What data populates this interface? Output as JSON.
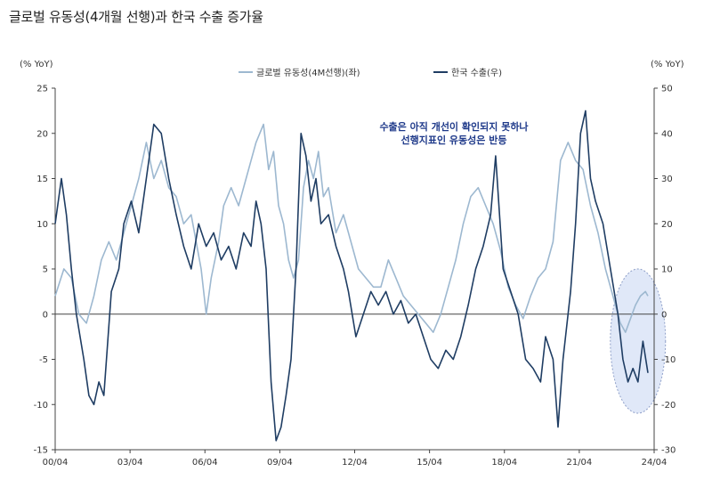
{
  "chart_data": {
    "type": "line",
    "title": "글로벌 유동성(4개월 선행)과 한국 수출 증가율",
    "left_axis": {
      "label": "(% YoY)",
      "ylim": [
        -15,
        25
      ],
      "ticks": [
        "25",
        "20",
        "15",
        "10",
        "5",
        "0",
        "-5",
        "-10",
        "-15"
      ]
    },
    "right_axis": {
      "label": "(% YoY)",
      "ylim": [
        -30,
        50
      ],
      "ticks": [
        "50",
        "40",
        "30",
        "20",
        "10",
        "0",
        "-10",
        "-20",
        "-30"
      ]
    },
    "x_ticks": [
      "00/04",
      "03/04",
      "06/04",
      "09/04",
      "12/04",
      "15/04",
      "18/04",
      "21/04",
      "24/04"
    ],
    "x_range": [
      2000.25,
      2024.25
    ],
    "legend_position": "top-center",
    "annotation": [
      "수출은 아직 개선이 확인되지 못하나",
      "선행지표인 유동성은 반등"
    ],
    "highlight": "ellipse around 2023 area",
    "colors": {
      "global": "#9db8d0",
      "korea": "#1f3d63",
      "highlight_fill": "#dbe4f7",
      "highlight_stroke": "#7b8fbf"
    },
    "series": [
      {
        "name": "글로벌 유동성(4M선행)(좌)",
        "axis": "left",
        "points": [
          [
            2000.25,
            2
          ],
          [
            2000.6,
            5
          ],
          [
            2000.9,
            4
          ],
          [
            2001.2,
            0
          ],
          [
            2001.5,
            -1
          ],
          [
            2001.8,
            2
          ],
          [
            2002.1,
            6
          ],
          [
            2002.4,
            8
          ],
          [
            2002.7,
            6
          ],
          [
            2003.0,
            9
          ],
          [
            2003.3,
            12
          ],
          [
            2003.6,
            15
          ],
          [
            2003.9,
            19
          ],
          [
            2004.2,
            15
          ],
          [
            2004.5,
            17
          ],
          [
            2004.8,
            14
          ],
          [
            2005.1,
            13
          ],
          [
            2005.4,
            10
          ],
          [
            2005.7,
            11
          ],
          [
            2005.9,
            8
          ],
          [
            2006.1,
            5
          ],
          [
            2006.3,
            0
          ],
          [
            2006.5,
            4
          ],
          [
            2006.8,
            8
          ],
          [
            2007.0,
            12
          ],
          [
            2007.3,
            14
          ],
          [
            2007.6,
            12
          ],
          [
            2007.9,
            15
          ],
          [
            2008.1,
            17
          ],
          [
            2008.3,
            19
          ],
          [
            2008.6,
            21
          ],
          [
            2008.8,
            16
          ],
          [
            2009.0,
            18
          ],
          [
            2009.2,
            12
          ],
          [
            2009.4,
            10
          ],
          [
            2009.6,
            6
          ],
          [
            2009.8,
            4
          ],
          [
            2010.0,
            6
          ],
          [
            2010.2,
            14
          ],
          [
            2010.4,
            17
          ],
          [
            2010.6,
            15
          ],
          [
            2010.8,
            18
          ],
          [
            2011.0,
            13
          ],
          [
            2011.2,
            14
          ],
          [
            2011.5,
            9
          ],
          [
            2011.8,
            11
          ],
          [
            2012.1,
            8
          ],
          [
            2012.4,
            5
          ],
          [
            2012.7,
            4
          ],
          [
            2013.0,
            3
          ],
          [
            2013.3,
            3
          ],
          [
            2013.6,
            6
          ],
          [
            2013.9,
            4
          ],
          [
            2014.2,
            2
          ],
          [
            2014.5,
            1
          ],
          [
            2014.8,
            0
          ],
          [
            2015.1,
            -1
          ],
          [
            2015.4,
            -2
          ],
          [
            2015.7,
            0
          ],
          [
            2016.0,
            3
          ],
          [
            2016.3,
            6
          ],
          [
            2016.6,
            10
          ],
          [
            2016.9,
            13
          ],
          [
            2017.2,
            14
          ],
          [
            2017.5,
            12
          ],
          [
            2017.8,
            10
          ],
          [
            2018.1,
            7
          ],
          [
            2018.4,
            3
          ],
          [
            2018.7,
            1
          ],
          [
            2019.0,
            -0.5
          ],
          [
            2019.3,
            2
          ],
          [
            2019.6,
            4
          ],
          [
            2019.9,
            5
          ],
          [
            2020.2,
            8
          ],
          [
            2020.5,
            17
          ],
          [
            2020.8,
            19
          ],
          [
            2021.1,
            17
          ],
          [
            2021.4,
            16
          ],
          [
            2021.7,
            12
          ],
          [
            2022.0,
            9
          ],
          [
            2022.3,
            5
          ],
          [
            2022.6,
            2
          ],
          [
            2022.9,
            -1
          ],
          [
            2023.1,
            -2
          ],
          [
            2023.3,
            -0.5
          ],
          [
            2023.5,
            1
          ],
          [
            2023.7,
            2
          ],
          [
            2023.9,
            2.5
          ],
          [
            2024.0,
            2
          ]
        ]
      },
      {
        "name": "한국 수출(우)",
        "axis": "right",
        "points": [
          [
            2000.25,
            20
          ],
          [
            2000.5,
            30
          ],
          [
            2000.7,
            22
          ],
          [
            2000.9,
            10
          ],
          [
            2001.1,
            0
          ],
          [
            2001.4,
            -10
          ],
          [
            2001.6,
            -18
          ],
          [
            2001.8,
            -20
          ],
          [
            2002.0,
            -15
          ],
          [
            2002.2,
            -18
          ],
          [
            2002.5,
            5
          ],
          [
            2002.8,
            10
          ],
          [
            2003.0,
            20
          ],
          [
            2003.3,
            25
          ],
          [
            2003.6,
            18
          ],
          [
            2003.9,
            30
          ],
          [
            2004.2,
            42
          ],
          [
            2004.5,
            40
          ],
          [
            2004.8,
            30
          ],
          [
            2005.1,
            22
          ],
          [
            2005.4,
            15
          ],
          [
            2005.7,
            10
          ],
          [
            2006.0,
            20
          ],
          [
            2006.3,
            15
          ],
          [
            2006.6,
            18
          ],
          [
            2006.9,
            12
          ],
          [
            2007.2,
            15
          ],
          [
            2007.5,
            10
          ],
          [
            2007.8,
            18
          ],
          [
            2008.1,
            15
          ],
          [
            2008.3,
            25
          ],
          [
            2008.5,
            20
          ],
          [
            2008.7,
            10
          ],
          [
            2008.9,
            -15
          ],
          [
            2009.1,
            -28
          ],
          [
            2009.3,
            -25
          ],
          [
            2009.5,
            -18
          ],
          [
            2009.7,
            -10
          ],
          [
            2009.9,
            10
          ],
          [
            2010.1,
            40
          ],
          [
            2010.3,
            35
          ],
          [
            2010.5,
            25
          ],
          [
            2010.7,
            30
          ],
          [
            2010.9,
            20
          ],
          [
            2011.2,
            22
          ],
          [
            2011.5,
            15
          ],
          [
            2011.8,
            10
          ],
          [
            2012.0,
            5
          ],
          [
            2012.3,
            -5
          ],
          [
            2012.6,
            0
          ],
          [
            2012.9,
            5
          ],
          [
            2013.2,
            2
          ],
          [
            2013.5,
            5
          ],
          [
            2013.8,
            0
          ],
          [
            2014.1,
            3
          ],
          [
            2014.4,
            -2
          ],
          [
            2014.7,
            0
          ],
          [
            2015.0,
            -5
          ],
          [
            2015.3,
            -10
          ],
          [
            2015.6,
            -12
          ],
          [
            2015.9,
            -8
          ],
          [
            2016.2,
            -10
          ],
          [
            2016.5,
            -5
          ],
          [
            2016.8,
            2
          ],
          [
            2017.1,
            10
          ],
          [
            2017.4,
            15
          ],
          [
            2017.7,
            22
          ],
          [
            2017.9,
            35
          ],
          [
            2018.2,
            10
          ],
          [
            2018.5,
            5
          ],
          [
            2018.8,
            0
          ],
          [
            2019.1,
            -10
          ],
          [
            2019.4,
            -12
          ],
          [
            2019.7,
            -15
          ],
          [
            2019.9,
            -5
          ],
          [
            2020.2,
            -10
          ],
          [
            2020.4,
            -25
          ],
          [
            2020.6,
            -10
          ],
          [
            2020.9,
            5
          ],
          [
            2021.1,
            20
          ],
          [
            2021.3,
            40
          ],
          [
            2021.5,
            45
          ],
          [
            2021.7,
            30
          ],
          [
            2021.9,
            25
          ],
          [
            2022.2,
            20
          ],
          [
            2022.5,
            10
          ],
          [
            2022.8,
            0
          ],
          [
            2023.0,
            -10
          ],
          [
            2023.2,
            -15
          ],
          [
            2023.4,
            -12
          ],
          [
            2023.6,
            -15
          ],
          [
            2023.8,
            -6
          ],
          [
            2024.0,
            -13
          ]
        ]
      }
    ]
  }
}
